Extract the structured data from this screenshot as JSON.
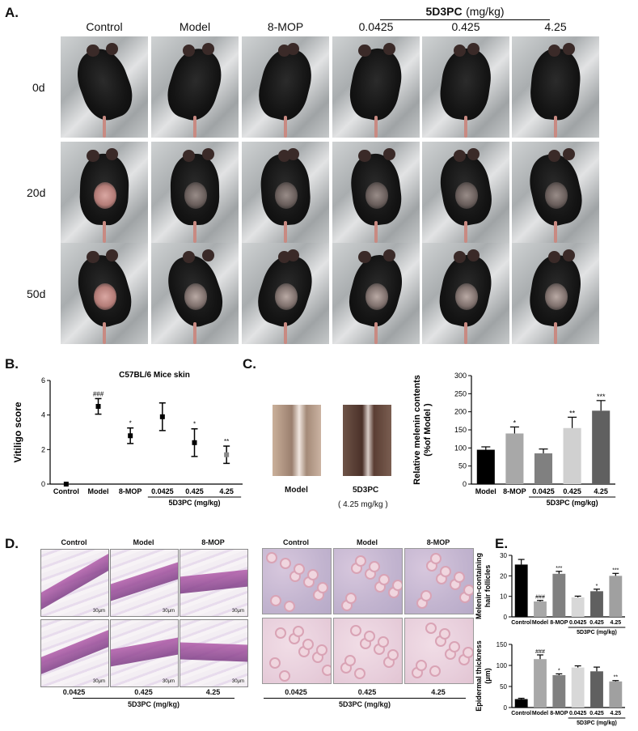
{
  "panelA": {
    "letter": "A.",
    "columns": [
      "Control",
      "Model",
      "8-MOP",
      "0.0425",
      "0.425",
      "4.25"
    ],
    "group_label": "5D3PC",
    "group_unit": "(mg/kg)",
    "rows": [
      "0d",
      "20d",
      "50d"
    ]
  },
  "panelB": {
    "letter": "B."
  },
  "panelC": {
    "letter": "C.",
    "photo_labels": [
      "Model",
      "5D3PC"
    ],
    "photo_sublabel": "( 4.25 mg/kg )"
  },
  "panelD": {
    "letter": "D.",
    "hist_left_top": [
      "Control",
      "Model",
      "8-MOP"
    ],
    "hist_left_bottom": [
      "0.0425",
      "0.425",
      "4.25"
    ],
    "hist_left_group": "5D3PC (mg/kg)",
    "hist_right_top": [
      "Control",
      "Model",
      "8-MOP"
    ],
    "hist_right_bottom": [
      "0.0425",
      "0.425",
      "4.25"
    ],
    "hist_right_group": "5D3PC (mg/kg)",
    "scale_label": "30μm"
  },
  "panelE": {
    "letter": "E."
  },
  "chart_data": [
    {
      "type": "scatter",
      "title": "C57BL/6  Mice skin",
      "ylabel": "Vitiligo score",
      "categories": [
        "Control",
        "Model",
        "8-MOP",
        "0.0425",
        "0.425",
        "4.25"
      ],
      "values": [
        0,
        4.5,
        2.8,
        3.9,
        2.4,
        1.7
      ],
      "errors": [
        0,
        0.45,
        0.45,
        0.8,
        0.8,
        0.5
      ],
      "significance": [
        "",
        "###",
        "*",
        "",
        "*",
        "**"
      ],
      "ylim": [
        0,
        6
      ],
      "yticks": [
        0,
        2,
        4,
        6
      ],
      "group_label": "5D3PC (mg/kg)"
    },
    {
      "type": "bar",
      "ylabel": "Relative melenin contents\n(%of Model )",
      "ylabel_lines": [
        "Relative melenin contents",
        "(%of Model )"
      ],
      "categories": [
        "Model",
        "8-MOP",
        "0.0425",
        "0.425",
        "4.25"
      ],
      "values": [
        95,
        140,
        85,
        155,
        203
      ],
      "errors": [
        8,
        18,
        12,
        30,
        28
      ],
      "significance": [
        "",
        "*",
        "",
        "**",
        "***"
      ],
      "colors": [
        "#000000",
        "#a8a8a8",
        "#808080",
        "#d0d0d0",
        "#606060"
      ],
      "ylim": [
        0,
        300
      ],
      "yticks": [
        0,
        50,
        100,
        150,
        200,
        250,
        300
      ],
      "group_label": "5D3PC (mg/kg)"
    },
    {
      "type": "bar",
      "ylabel": "Melenin-containing\nhair follicles",
      "ylabel_lines": [
        "Melenin-containing",
        "hair follicles"
      ],
      "categories": [
        "Control",
        "Model",
        "8-MOP",
        "0.0425",
        "0.425",
        "4.25"
      ],
      "values": [
        25.5,
        7.5,
        21,
        9.5,
        12.5,
        20
      ],
      "errors": [
        2.5,
        0.5,
        1.2,
        0.6,
        1.0,
        1.2
      ],
      "significance": [
        "",
        "###",
        "***",
        "",
        "*",
        "***"
      ],
      "colors": [
        "#000000",
        "#a8a8a8",
        "#808080",
        "#d8d8d8",
        "#606060",
        "#a0a0a0"
      ],
      "ylim": [
        0,
        30
      ],
      "yticks": [
        0,
        10,
        20,
        30
      ],
      "group_label": "5D3PC (mg/kg)"
    },
    {
      "type": "bar",
      "ylabel": "Epidermal thickness\n(μm)",
      "ylabel_lines": [
        "Epidermal thickness",
        "(μm)"
      ],
      "categories": [
        "Control",
        "Model",
        "8-MOP",
        "0.0425",
        "0.425",
        "4.25"
      ],
      "values": [
        20,
        115,
        77,
        95,
        86,
        62
      ],
      "errors": [
        2,
        10,
        3,
        4,
        10,
        2
      ],
      "significance": [
        "",
        "###",
        "*",
        "",
        "",
        "**"
      ],
      "colors": [
        "#000000",
        "#a8a8a8",
        "#808080",
        "#d8d8d8",
        "#606060",
        "#a0a0a0"
      ],
      "ylim": [
        0,
        150
      ],
      "yticks": [
        0,
        50,
        100,
        150
      ],
      "group_label": "5D3PC (mg/kg)"
    }
  ]
}
